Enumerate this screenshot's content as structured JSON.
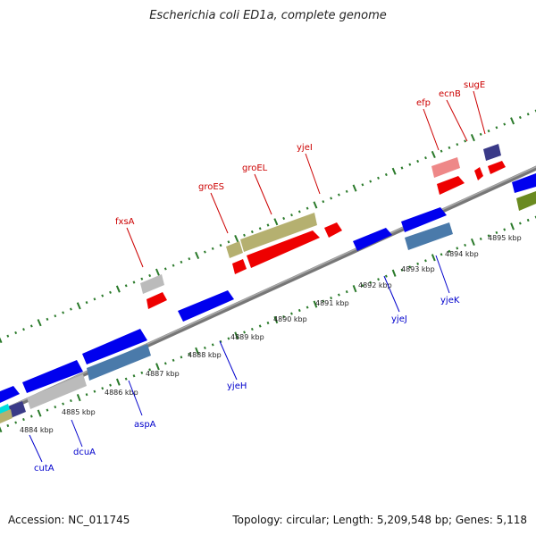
{
  "title": "Escherichia coli ED1a, complete genome",
  "footer": {
    "accession": "Accession: NC_011745",
    "topology": "Topology: circular; Length: 5,209,548 bp; Genes: 5,118"
  },
  "colors": {
    "label_top": "#cc0000",
    "label_bottom": "#0000cc",
    "backbone": "#888888",
    "ticks": "#2a7a2a"
  },
  "tick_labels": [
    {
      "text": "4884 kbp"
    },
    {
      "text": "4885 kbp"
    },
    {
      "text": "4886 kbp"
    },
    {
      "text": "4887 kbp"
    },
    {
      "text": "4888 kbp"
    },
    {
      "text": "4889 kbp"
    },
    {
      "text": "4890 kbp"
    },
    {
      "text": "4891 kbp"
    },
    {
      "text": "4892 kbp"
    },
    {
      "text": "4893 kbp"
    },
    {
      "text": "4894 kbp"
    },
    {
      "text": "4895 kbp"
    }
  ],
  "top_genes": [
    {
      "name": "fxsA"
    },
    {
      "name": "groES"
    },
    {
      "name": "groEL"
    },
    {
      "name": "yjeI"
    },
    {
      "name": "efp"
    },
    {
      "name": "ecnB"
    },
    {
      "name": "sugE"
    }
  ],
  "bottom_genes": [
    {
      "name": "cutA"
    },
    {
      "name": "dcuA"
    },
    {
      "name": "aspA"
    },
    {
      "name": "yjeH"
    },
    {
      "name": "yjeJ"
    },
    {
      "name": "yjeK"
    }
  ],
  "feature_colors": {
    "cds": "#0000ee",
    "gene_grey": "#bbbbbb",
    "gene_olive": "#b5b070",
    "gene_red": "#ee0000",
    "gene_pink": "#ee8888",
    "gene_navy": "#3a3a88",
    "gene_steel": "#4a7aaa",
    "gene_green": "#6a8a20",
    "gene_cyan": "#00dddd"
  }
}
